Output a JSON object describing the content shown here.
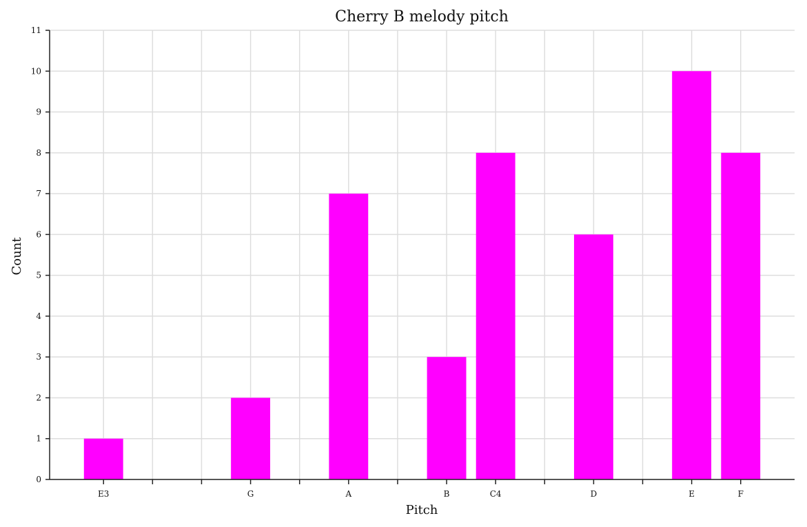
{
  "chart_data": {
    "type": "bar",
    "title": "Cherry B melody pitch",
    "xlabel": "Pitch",
    "ylabel": "Count",
    "x_ticks": [
      {
        "pos": 0,
        "label": "E3"
      },
      {
        "pos": 1,
        "label": ""
      },
      {
        "pos": 2,
        "label": ""
      },
      {
        "pos": 3,
        "label": "G"
      },
      {
        "pos": 4,
        "label": ""
      },
      {
        "pos": 5,
        "label": "A"
      },
      {
        "pos": 6,
        "label": ""
      },
      {
        "pos": 7,
        "label": "B"
      },
      {
        "pos": 8,
        "label": "C4"
      },
      {
        "pos": 9,
        "label": ""
      },
      {
        "pos": 10,
        "label": "D"
      },
      {
        "pos": 11,
        "label": ""
      },
      {
        "pos": 12,
        "label": "E"
      },
      {
        "pos": 13,
        "label": "F"
      }
    ],
    "bars": [
      {
        "pos": 0,
        "label": "E3",
        "value": 1
      },
      {
        "pos": 3,
        "label": "G",
        "value": 2
      },
      {
        "pos": 5,
        "label": "A",
        "value": 7
      },
      {
        "pos": 7,
        "label": "B",
        "value": 3
      },
      {
        "pos": 8,
        "label": "C4",
        "value": 8
      },
      {
        "pos": 10,
        "label": "D",
        "value": 6
      },
      {
        "pos": 12,
        "label": "E",
        "value": 10
      },
      {
        "pos": 13,
        "label": "F",
        "value": 8
      }
    ],
    "ylim": [
      0,
      11
    ],
    "yticks": [
      0,
      1,
      2,
      3,
      4,
      5,
      6,
      7,
      8,
      9,
      10,
      11
    ],
    "grid": true,
    "bar_color": "#ff00ff"
  }
}
